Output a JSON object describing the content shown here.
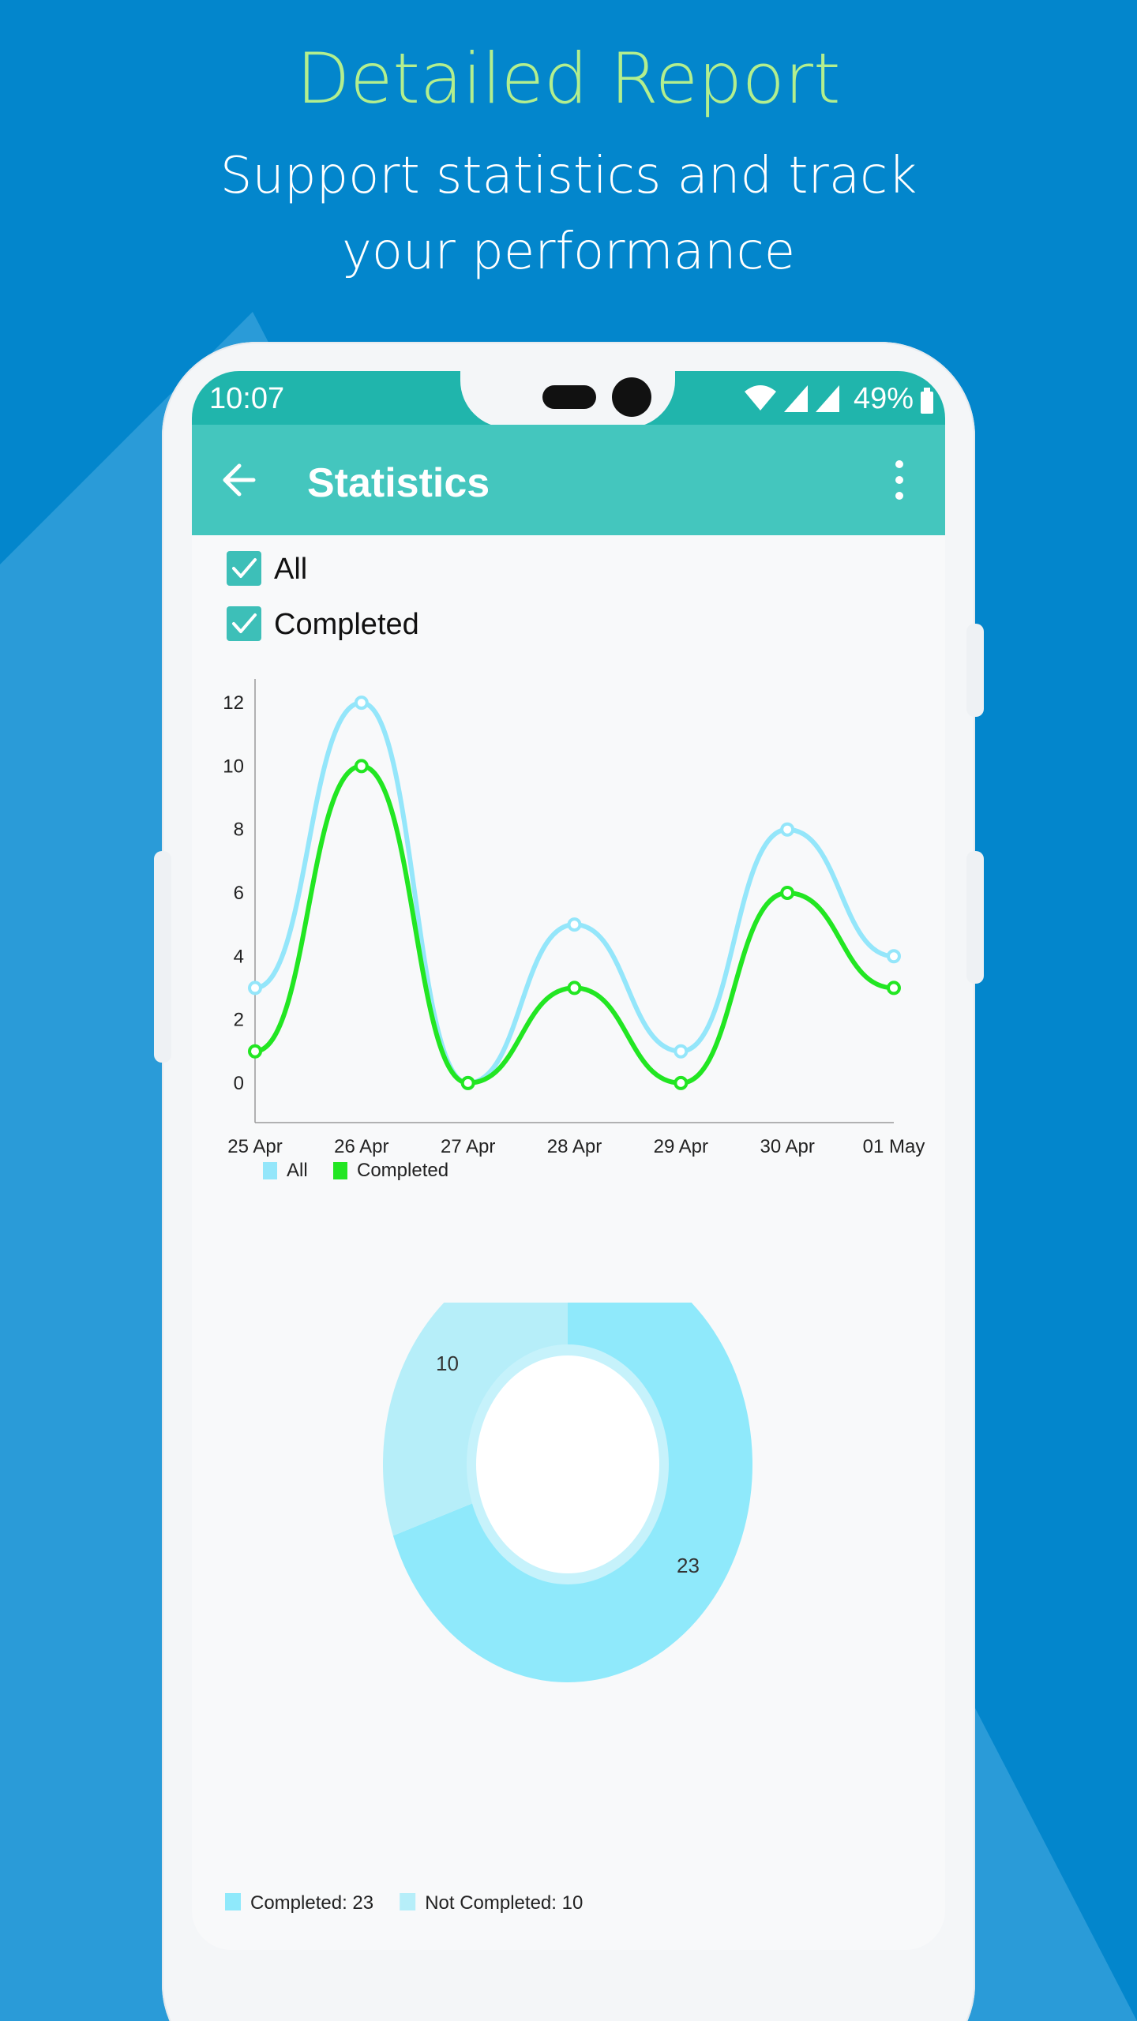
{
  "hero": {
    "title": "Detailed Report",
    "subtitle_line1": "Support statistics and track",
    "subtitle_line2": "your performance"
  },
  "status_bar": {
    "time": "10:07",
    "battery": "49%",
    "icons": [
      "wifi-icon",
      "signal-icon",
      "signal-icon",
      "battery-icon"
    ]
  },
  "app_bar": {
    "title": "Statistics",
    "back_icon": "arrow-left-icon",
    "menu_icon": "more-vert-icon"
  },
  "filters": [
    {
      "label": "All",
      "checked": true
    },
    {
      "label": "Completed",
      "checked": true
    }
  ],
  "colors": {
    "background": "#0386cc",
    "hero_title": "#b3ef8e",
    "status_bar": "#20b5ac",
    "app_bar": "#44c6be",
    "checkbox": "#3dbfb8",
    "series_all": "#94e6fa",
    "series_completed": "#22e622",
    "donut_completed": "#8fe9fb",
    "donut_not_completed": "#b6eef9"
  },
  "chart_data": [
    {
      "type": "line",
      "categories": [
        "25 Apr",
        "26 Apr",
        "27 Apr",
        "28 Apr",
        "29 Apr",
        "30 Apr",
        "01 May"
      ],
      "y_ticks": [
        0,
        2,
        4,
        6,
        8,
        10,
        12
      ],
      "ylim": [
        -1,
        13
      ],
      "grid": false,
      "legend": "bottom-left",
      "series": [
        {
          "name": "All",
          "values": [
            3,
            12,
            0,
            5,
            1,
            8,
            4
          ],
          "color": "#94e6fa"
        },
        {
          "name": "Completed",
          "values": [
            1,
            10,
            0,
            3,
            0,
            6,
            3
          ],
          "color": "#22e622"
        }
      ]
    },
    {
      "type": "pie",
      "hole": true,
      "legend": "bottom-left",
      "slices": [
        {
          "name": "Completed",
          "value": 23,
          "legend_label": "Completed: 23",
          "label": "23",
          "color": "#8fe9fb"
        },
        {
          "name": "Not Completed",
          "value": 10,
          "legend_label": "Not Completed: 10",
          "label": "10",
          "color": "#b6eef9"
        }
      ]
    }
  ]
}
